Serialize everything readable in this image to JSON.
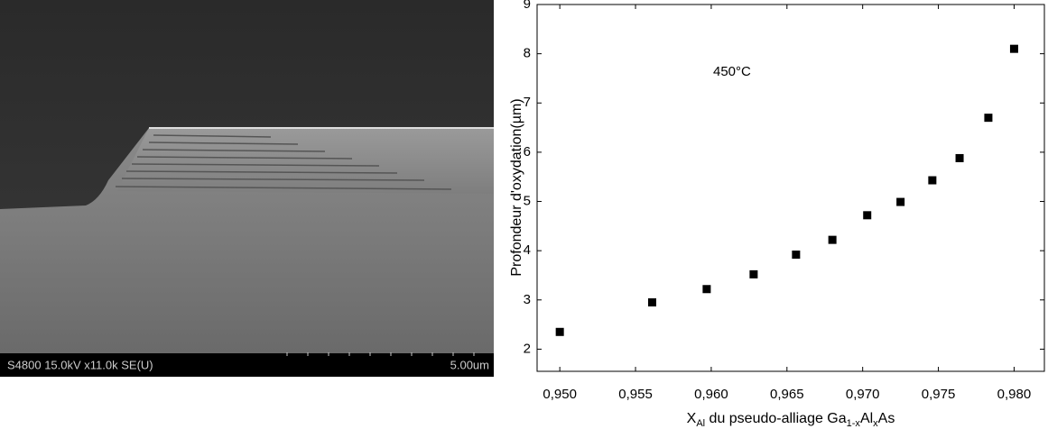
{
  "micrograph": {
    "info": "S4800 15.0kV x11.0k SE(U)",
    "scale": "5.00um"
  },
  "chart_data": {
    "type": "scatter",
    "annotation": "450°C",
    "xlabel_parts": [
      "X",
      "Al",
      " du pseudo-alliage Ga",
      "1-x",
      "Al",
      "x",
      "As"
    ],
    "ylabel": "Profondeur d'oxydation(µm)",
    "series": [
      {
        "color": "#000000",
        "x": [
          0.95,
          0.9561,
          0.9597,
          0.9628,
          0.9656,
          0.968,
          0.9703,
          0.9725,
          0.9746,
          0.9764,
          0.9783,
          0.98
        ],
        "values": [
          2.35,
          2.95,
          3.22,
          3.52,
          3.92,
          4.22,
          4.72,
          4.99,
          5.43,
          5.88,
          6.7,
          8.1
        ]
      }
    ],
    "xlim": [
      0.9485,
      0.982
    ],
    "xticks": [
      {
        "value": 0.95,
        "label": "0,950"
      },
      {
        "value": 0.955,
        "label": "0,955"
      },
      {
        "value": 0.96,
        "label": "0,960"
      },
      {
        "value": 0.965,
        "label": "0,965"
      },
      {
        "value": 0.97,
        "label": "0,970"
      },
      {
        "value": 0.975,
        "label": "0,975"
      },
      {
        "value": 0.98,
        "label": "0,980"
      }
    ],
    "ylim": [
      1.55,
      9
    ],
    "yticks": [
      2,
      3,
      4,
      5,
      6,
      7,
      8,
      9
    ],
    "grid": false
  }
}
